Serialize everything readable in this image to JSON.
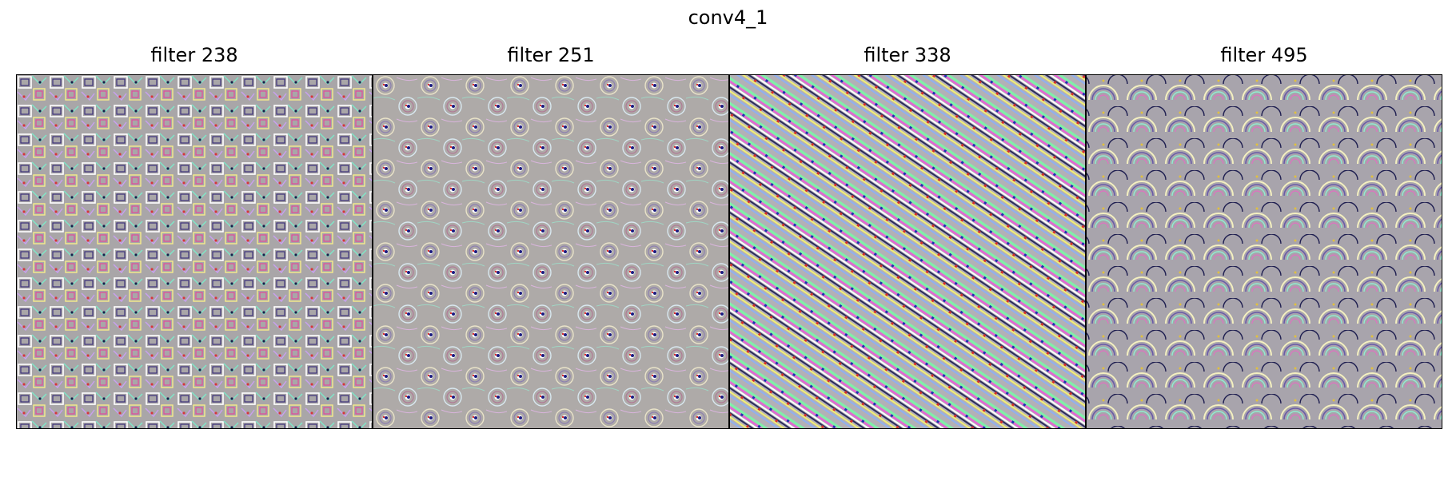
{
  "figure": {
    "title": "conv4_1",
    "panels": [
      {
        "title": "filter 238",
        "pattern": "blocky-glyph-texture"
      },
      {
        "title": "filter 251",
        "pattern": "swirl-eye-texture"
      },
      {
        "title": "filter 338",
        "pattern": "diagonal-stripe-texture"
      },
      {
        "title": "filter 495",
        "pattern": "scale-arc-texture"
      }
    ]
  },
  "colors": {
    "background": "#ffffff",
    "frame": "#000000",
    "texture_base": "#a9a6a8"
  }
}
